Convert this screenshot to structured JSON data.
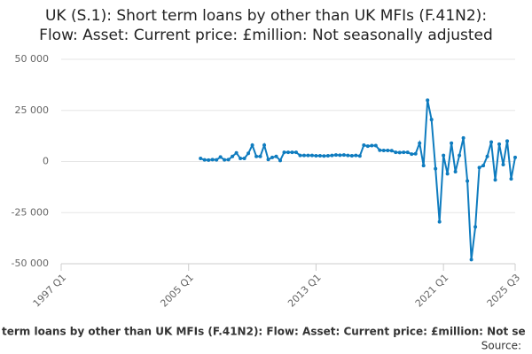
{
  "chart_data": {
    "type": "line",
    "title": [
      "UK (S.1): Short term loans by other than UK MFIs (F.41N2):",
      "Flow: Asset: Current price: £million: Not seasonally adjusted"
    ],
    "footer": "term loans by other than UK MFIs (F.41N2): Flow: Asset: Current price: £million: Not se",
    "source": "Source:",
    "categories": [
      "1997 Q1",
      null,
      null,
      null,
      null,
      null,
      null,
      null,
      null,
      null,
      null,
      null,
      null,
      null,
      null,
      null,
      null,
      null,
      null,
      null,
      null,
      null,
      null,
      null,
      null,
      null,
      null,
      null,
      null,
      null,
      null,
      null,
      "2005 Q1",
      null,
      null,
      null,
      null,
      null,
      null,
      null,
      null,
      null,
      null,
      null,
      null,
      null,
      null,
      null,
      null,
      null,
      null,
      null,
      null,
      null,
      null,
      null,
      null,
      null,
      null,
      null,
      null,
      null,
      null,
      null,
      "2013 Q1",
      null,
      null,
      null,
      null,
      null,
      null,
      null,
      null,
      null,
      null,
      null,
      null,
      null,
      null,
      null,
      null,
      null,
      null,
      null,
      null,
      null,
      null,
      null,
      null,
      null,
      null,
      null,
      null,
      null,
      null,
      null,
      "2021 Q1",
      null,
      null,
      null,
      null,
      null,
      null,
      null,
      null,
      null,
      null,
      null,
      null,
      null,
      null,
      null,
      null,
      null,
      "2025 Q3"
    ],
    "series": [
      {
        "color": "#0f7cbf",
        "values": [
          null,
          null,
          null,
          null,
          null,
          null,
          null,
          null,
          null,
          null,
          null,
          null,
          null,
          null,
          null,
          null,
          null,
          null,
          null,
          null,
          null,
          null,
          null,
          null,
          null,
          null,
          null,
          null,
          null,
          null,
          null,
          null,
          null,
          null,
          null,
          1500,
          800,
          700,
          900,
          800,
          2200,
          800,
          900,
          2500,
          4200,
          1500,
          1500,
          4000,
          8000,
          2500,
          2500,
          8000,
          1000,
          2000,
          2500,
          500,
          4500,
          4500,
          4500,
          4500,
          3000,
          3000,
          3000,
          3000,
          2800,
          2800,
          2700,
          2800,
          3000,
          3200,
          3100,
          3200,
          3000,
          2800,
          3000,
          2700,
          8000,
          7500,
          7800,
          7800,
          5500,
          5400,
          5400,
          5300,
          4500,
          4400,
          4500,
          4500,
          3600,
          3800,
          9000,
          -2000,
          30000,
          20500,
          -3500,
          -29500,
          3000,
          -6000,
          9000,
          -5000,
          3000,
          11500,
          -9500,
          -48000,
          -32000,
          -3000,
          -2000,
          2500,
          9500,
          -9000,
          8500,
          -1500,
          10000,
          -8500,
          2000
        ]
      }
    ],
    "ylim": [
      -50000,
      50000
    ],
    "yticks": [
      {
        "value": -50000,
        "label": "-50 000"
      },
      {
        "value": -25000,
        "label": "-25 000"
      },
      0,
      {
        "value": 25000,
        "label": "25 000"
      },
      {
        "value": 50000,
        "label": "50 000"
      }
    ],
    "grid": true
  }
}
